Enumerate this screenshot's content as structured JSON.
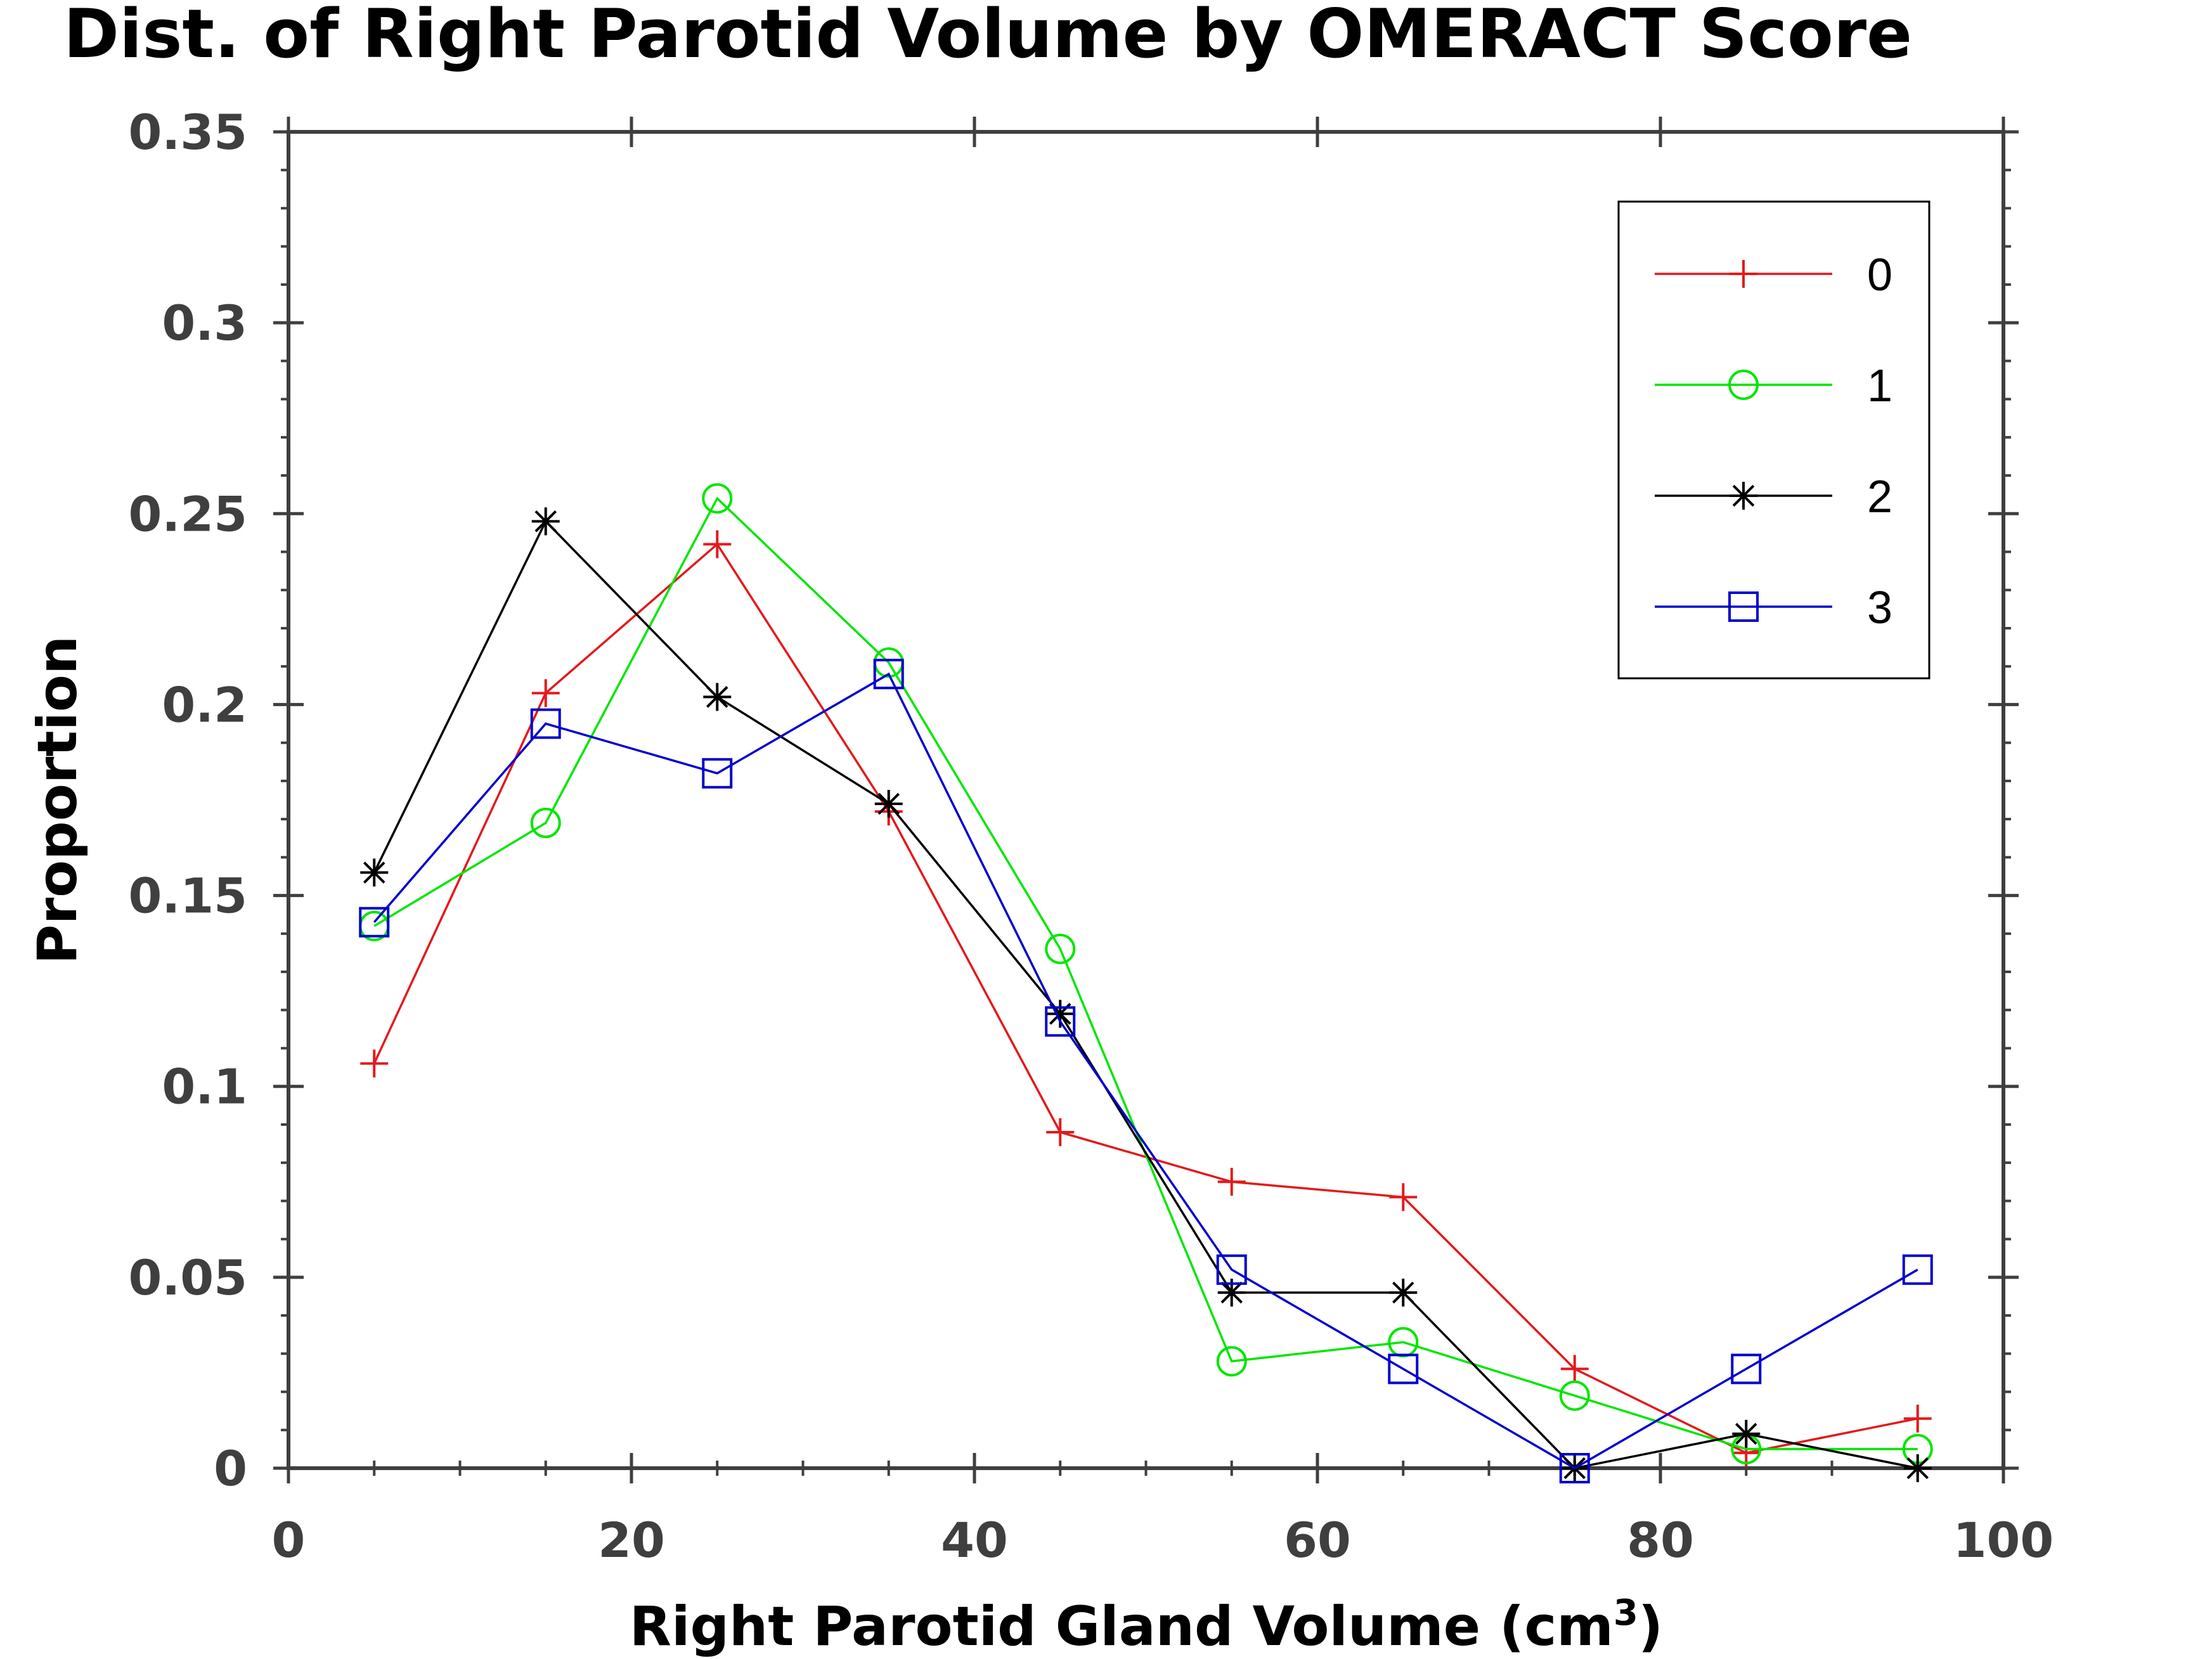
{
  "chart_data": {
    "type": "line",
    "title": "Dist. of Right Parotid Volume by OMERACT Score",
    "xlabel": "Right Parotid Gland Volume (cm",
    "xlabel_sup": "3",
    "xlabel_suffix": ")",
    "ylabel": "Proportion",
    "xlim": [
      0,
      100
    ],
    "ylim": [
      0,
      0.35
    ],
    "x_ticks": [
      0,
      20,
      40,
      60,
      80,
      100
    ],
    "x_tick_labels": [
      "0",
      "20",
      "40",
      "60",
      "80",
      "100"
    ],
    "y_ticks": [
      0,
      0.05,
      0.1,
      0.15,
      0.2,
      0.25,
      0.3,
      0.35
    ],
    "y_tick_labels": [
      "0",
      "0.05",
      "0.1",
      "0.15",
      "0.2",
      "0.25",
      "0.3",
      "0.35"
    ],
    "legend_position": "top-right",
    "grid": false,
    "x": [
      5,
      15,
      25,
      35,
      45,
      55,
      65,
      75,
      85,
      95
    ],
    "series": [
      {
        "name": "0",
        "color": "#e31a1c",
        "marker": "plus",
        "values": [
          0.106,
          0.203,
          0.242,
          0.172,
          0.088,
          0.075,
          0.071,
          0.026,
          0.004,
          0.013
        ]
      },
      {
        "name": "1",
        "color": "#00e600",
        "marker": "circle",
        "values": [
          0.142,
          0.169,
          0.254,
          0.211,
          0.136,
          0.028,
          0.033,
          0.019,
          0.005,
          0.005
        ]
      },
      {
        "name": "2",
        "color": "#000000",
        "marker": "star",
        "values": [
          0.156,
          0.248,
          0.202,
          0.174,
          0.119,
          0.046,
          0.046,
          0.0,
          0.009,
          0.0
        ]
      },
      {
        "name": "3",
        "color": "#0000cc",
        "marker": "square",
        "values": [
          0.143,
          0.195,
          0.182,
          0.208,
          0.117,
          0.052,
          0.026,
          0.0,
          0.026,
          0.052
        ]
      }
    ]
  }
}
